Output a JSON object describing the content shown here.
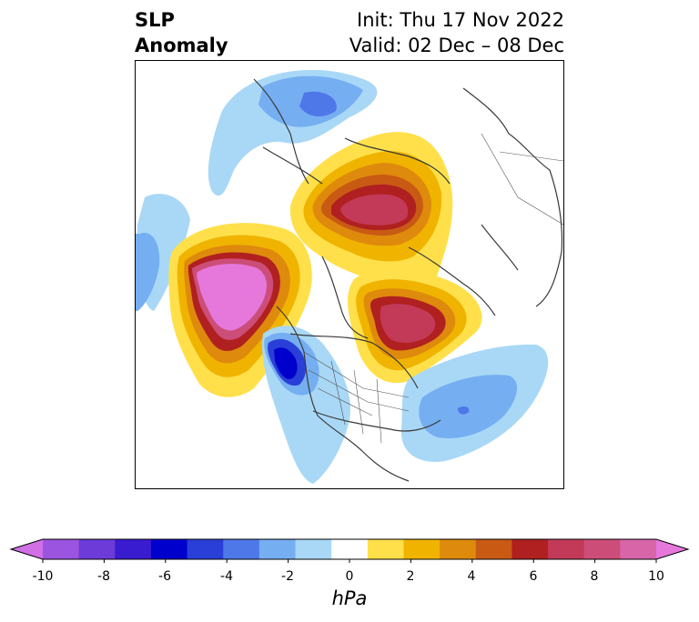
{
  "title": {
    "left_line1": "SLP",
    "left_line2": "Anomaly",
    "right_line1": "Init: Thu 17 Nov 2022",
    "right_line2": "Valid: 02 Dec – 08 Dec"
  },
  "colorbar": {
    "unit": "hPa",
    "ticks": [
      "-10",
      "-8",
      "-6",
      "-4",
      "-2",
      "0",
      "2",
      "4",
      "6",
      "8",
      "10"
    ],
    "colors": [
      "#d16fe6",
      "#9b54e0",
      "#6c3bd8",
      "#3a1cd0",
      "#0000cc",
      "#2a3fd8",
      "#4e78e8",
      "#76aef2",
      "#a9d8f6",
      "#ffffff",
      "#ffe04a",
      "#f0b400",
      "#de8a0c",
      "#c85a14",
      "#b02020",
      "#c23a58",
      "#cc4e78",
      "#d865a8",
      "#e678dc"
    ]
  },
  "map": {
    "projection": "north polar stereographic",
    "features": [
      "coastlines",
      "country borders",
      "US state borders"
    ]
  }
}
